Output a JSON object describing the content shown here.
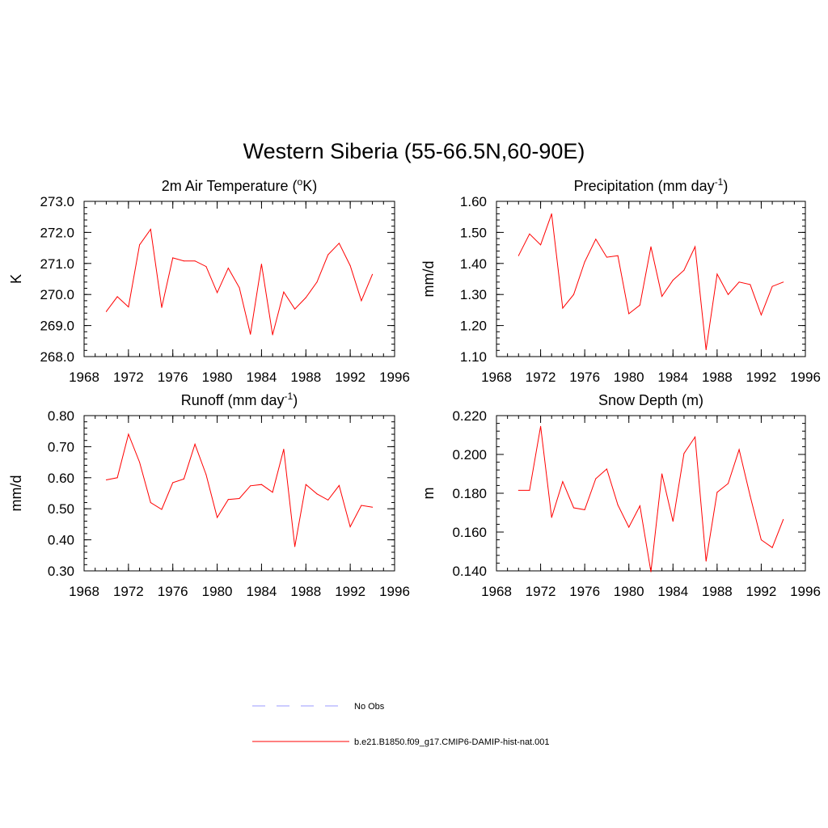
{
  "title": "Western Siberia (55-66.5N,60-90E)",
  "colors": {
    "model": "#ff0000",
    "obs": "#9999ff",
    "axis": "#000000"
  },
  "legend": [
    {
      "label": "No Obs",
      "style": "dashed",
      "color": "#9999ff"
    },
    {
      "label": "b.e21.B1850.f09_g17.CMIP6-DAMIP-hist-nat.001",
      "style": "solid",
      "color": "#ff0000"
    }
  ],
  "chart_data": [
    {
      "type": "line",
      "title": "2m Air Temperature (",
      "title_sup": "o",
      "title_post": "K)",
      "ylabel": "K",
      "xlim": [
        1968,
        1996
      ],
      "ylim": [
        268.0,
        273.0
      ],
      "xticks": [
        1968,
        1972,
        1976,
        1980,
        1984,
        1988,
        1992,
        1996
      ],
      "yticks": [
        "268.0",
        "269.0",
        "270.0",
        "271.0",
        "272.0",
        "273.0"
      ],
      "series": [
        {
          "x": [
            1970,
            1971,
            1972,
            1973,
            1974,
            1975,
            1976,
            1977,
            1978,
            1979,
            1980,
            1981,
            1982,
            1983,
            1984,
            1985,
            1986,
            1987,
            1988,
            1989,
            1990,
            1991,
            1992,
            1993,
            1994
          ],
          "values": [
            269.45,
            269.93,
            269.6,
            271.6,
            272.1,
            269.58,
            271.18,
            271.08,
            271.08,
            270.9,
            270.06,
            270.85,
            270.22,
            268.72,
            270.98,
            268.7,
            270.08,
            269.53,
            269.9,
            270.4,
            271.28,
            271.65,
            270.93,
            269.8,
            270.65
          ]
        }
      ]
    },
    {
      "type": "line",
      "title": "Precipitation (mm day",
      "title_sup": "-1",
      "title_post": ")",
      "ylabel": "mm/d",
      "xlim": [
        1968,
        1996
      ],
      "ylim": [
        1.1,
        1.6
      ],
      "xticks": [
        1968,
        1972,
        1976,
        1980,
        1984,
        1988,
        1992,
        1996
      ],
      "yticks": [
        "1.10",
        "1.20",
        "1.30",
        "1.40",
        "1.50",
        "1.60"
      ],
      "series": [
        {
          "x": [
            1970,
            1971,
            1972,
            1973,
            1974,
            1975,
            1976,
            1977,
            1978,
            1979,
            1980,
            1981,
            1982,
            1983,
            1984,
            1985,
            1986,
            1987,
            1988,
            1989,
            1990,
            1991,
            1992,
            1993,
            1994
          ],
          "values": [
            1.425,
            1.495,
            1.46,
            1.56,
            1.256,
            1.3,
            1.405,
            1.478,
            1.42,
            1.425,
            1.238,
            1.266,
            1.454,
            1.294,
            1.346,
            1.378,
            1.454,
            1.122,
            1.366,
            1.3,
            1.34,
            1.332,
            1.234,
            1.326,
            1.34
          ]
        }
      ]
    },
    {
      "type": "line",
      "title": "Runoff (mm day",
      "title_sup": "-1",
      "title_post": ")",
      "ylabel": "mm/d",
      "xlim": [
        1968,
        1996
      ],
      "ylim": [
        0.3,
        0.8
      ],
      "xticks": [
        1968,
        1972,
        1976,
        1980,
        1984,
        1988,
        1992,
        1996
      ],
      "yticks": [
        "0.30",
        "0.40",
        "0.50",
        "0.60",
        "0.70",
        "0.80"
      ],
      "series": [
        {
          "x": [
            1970,
            1971,
            1972,
            1973,
            1974,
            1975,
            1976,
            1977,
            1978,
            1979,
            1980,
            1981,
            1982,
            1983,
            1984,
            1985,
            1986,
            1987,
            1988,
            1989,
            1990,
            1991,
            1992,
            1993,
            1994
          ],
          "values": [
            0.593,
            0.6,
            0.74,
            0.65,
            0.52,
            0.498,
            0.584,
            0.596,
            0.708,
            0.61,
            0.472,
            0.53,
            0.533,
            0.574,
            0.578,
            0.553,
            0.692,
            0.378,
            0.578,
            0.548,
            0.528,
            0.575,
            0.442,
            0.511,
            0.505
          ]
        }
      ]
    },
    {
      "type": "line",
      "title": "Snow Depth (m)",
      "title_sup": "",
      "title_post": "",
      "ylabel": "m",
      "xlim": [
        1968,
        1996
      ],
      "ylim": [
        0.14,
        0.22
      ],
      "xticks": [
        1968,
        1972,
        1976,
        1980,
        1984,
        1988,
        1992,
        1996
      ],
      "yticks": [
        "0.140",
        "0.160",
        "0.180",
        "0.200",
        "0.220"
      ],
      "series": [
        {
          "x": [
            1970,
            1971,
            1972,
            1973,
            1974,
            1975,
            1976,
            1977,
            1978,
            1979,
            1980,
            1981,
            1982,
            1983,
            1984,
            1985,
            1986,
            1987,
            1988,
            1989,
            1990,
            1991,
            1992,
            1993,
            1994
          ],
          "values": [
            0.1815,
            0.1815,
            0.2145,
            0.1675,
            0.186,
            0.1725,
            0.1715,
            0.1875,
            0.1925,
            0.174,
            0.1625,
            0.1735,
            0.1395,
            0.19,
            0.1655,
            0.2005,
            0.209,
            0.145,
            0.1805,
            0.185,
            0.2025,
            0.1785,
            0.156,
            0.152,
            0.1665
          ]
        }
      ]
    }
  ]
}
